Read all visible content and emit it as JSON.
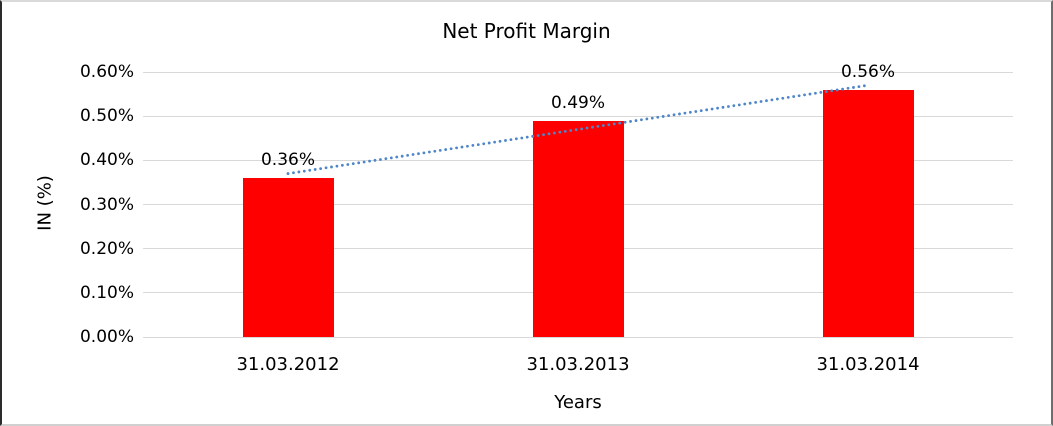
{
  "chart_data": {
    "type": "bar",
    "title": "Net Profit Margin",
    "xlabel": "Years",
    "ylabel": "IN (%)",
    "categories": [
      "31.03.2012",
      "31.03.2013",
      "31.03.2014"
    ],
    "series": [
      {
        "name": "Net Profit Margin",
        "values": [
          0.36,
          0.49,
          0.56
        ],
        "data_labels": [
          "0.36%",
          "0.49%",
          "0.56%"
        ],
        "color": "#ff0000"
      }
    ],
    "y_ticks": [
      "0.00%",
      "0.10%",
      "0.20%",
      "0.30%",
      "0.40%",
      "0.50%",
      "0.60%"
    ],
    "y_tick_values": [
      0.0,
      0.1,
      0.2,
      0.3,
      0.4,
      0.5,
      0.6
    ],
    "ylim": [
      0.0,
      0.6
    ],
    "grid": "horizontal",
    "legend": "none",
    "trendline": {
      "type": "linear",
      "style": "dotted",
      "color": "#4e86c8"
    }
  },
  "colors": {
    "bar": "#ff0000",
    "trendline": "#4e86c8",
    "gridline": "#d9d9d9",
    "text": "#000000",
    "background": "#ffffff"
  }
}
